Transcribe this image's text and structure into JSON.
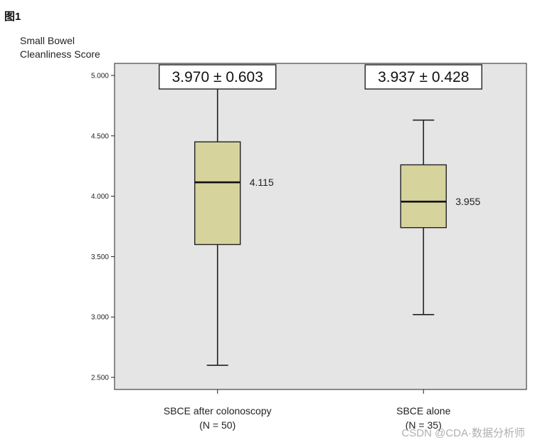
{
  "figure_label": "图1",
  "watermark": "CSDN @CDA·数据分析师",
  "chart_data": {
    "type": "box",
    "ylabel_lines": [
      "Small Bowel",
      "Cleanliness Score"
    ],
    "ylim": [
      2.4,
      5.1
    ],
    "yticks": [
      {
        "value": 2.5,
        "label": "2.500"
      },
      {
        "value": 3.0,
        "label": "3.000"
      },
      {
        "value": 3.5,
        "label": "3.500"
      },
      {
        "value": 4.0,
        "label": "4.000"
      },
      {
        "value": 4.5,
        "label": "4.500"
      },
      {
        "value": 5.0,
        "label": "5.000"
      }
    ],
    "grid": false,
    "plot_background": "#e5e5e5",
    "box_color": "#d6d49c",
    "groups": [
      {
        "category_line1": "SBCE after colonoscopy",
        "category_line2": "(N = 50)",
        "whisker_low": 2.6,
        "q1": 3.6,
        "median": 4.115,
        "q3": 4.45,
        "whisker_high": 4.9,
        "median_label": "4.115",
        "annotation": "3.970 ± 0.603"
      },
      {
        "category_line1": "SBCE alone",
        "category_line2": "(N = 35)",
        "whisker_low": 3.02,
        "q1": 3.74,
        "median": 3.955,
        "q3": 4.26,
        "whisker_high": 4.63,
        "median_label": "3.955",
        "annotation": "3.937 ± 0.428"
      }
    ]
  }
}
